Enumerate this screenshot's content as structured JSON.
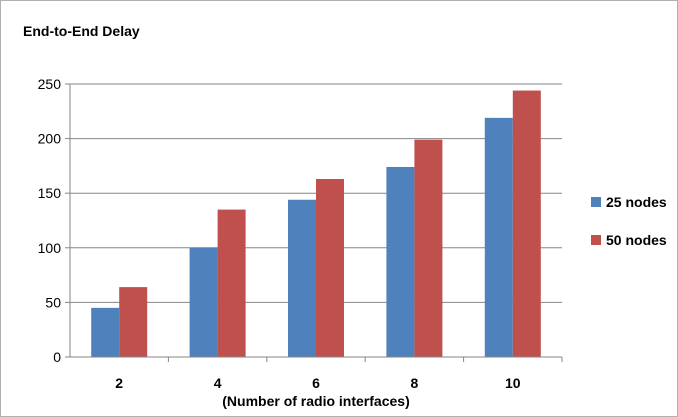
{
  "chart_data": {
    "type": "bar",
    "title": "End-to-End Delay",
    "xlabel": "(Number of radio interfaces)",
    "ylabel": "",
    "categories": [
      "2",
      "4",
      "6",
      "8",
      "10"
    ],
    "ylim": [
      0,
      250
    ],
    "yticks": [
      "0",
      "50",
      "100",
      "150",
      "200",
      "250"
    ],
    "grid": true,
    "legend_position": "right",
    "series": [
      {
        "name": "25 nodes",
        "color": "#4f81bd",
        "values": [
          45,
          100,
          144,
          174,
          219
        ]
      },
      {
        "name": "50 nodes",
        "color": "#c0504d",
        "values": [
          64,
          135,
          163,
          199,
          244
        ]
      }
    ]
  }
}
